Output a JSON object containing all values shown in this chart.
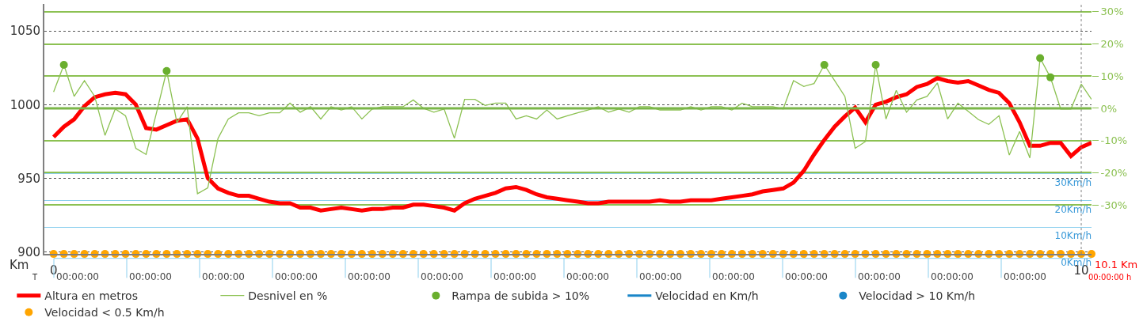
{
  "chart_data": {
    "type": "line",
    "x": [
      0,
      0.1,
      0.2,
      0.3,
      0.4,
      0.5,
      0.6,
      0.7,
      0.8,
      0.9,
      1.0,
      1.1,
      1.2,
      1.3,
      1.4,
      1.5,
      1.6,
      1.7,
      1.8,
      1.9,
      2.0,
      2.1,
      2.2,
      2.3,
      2.4,
      2.5,
      2.6,
      2.7,
      2.8,
      2.9,
      3.0,
      3.1,
      3.2,
      3.3,
      3.4,
      3.5,
      3.6,
      3.7,
      3.8,
      3.9,
      4.0,
      4.1,
      4.2,
      4.3,
      4.4,
      4.5,
      4.6,
      4.7,
      4.8,
      4.9,
      5.0,
      5.1,
      5.2,
      5.3,
      5.4,
      5.5,
      5.6,
      5.7,
      5.8,
      5.9,
      6.0,
      6.1,
      6.2,
      6.3,
      6.4,
      6.5,
      6.6,
      6.7,
      6.8,
      6.9,
      7.0,
      7.1,
      7.2,
      7.3,
      7.4,
      7.5,
      7.6,
      7.7,
      7.8,
      7.9,
      8.0,
      8.1,
      8.2,
      8.3,
      8.4,
      8.5,
      8.6,
      8.7,
      8.8,
      8.9,
      9.0,
      9.1,
      9.2,
      9.3,
      9.4,
      9.5,
      9.6,
      9.7,
      9.8,
      9.9,
      10.0,
      10.1
    ],
    "series": [
      {
        "name": "Altura en metros",
        "type": "line",
        "color": "#ff0000",
        "values": [
          978,
          985,
          990,
          999,
          1005,
          1007,
          1008,
          1007,
          1000,
          984,
          983,
          986,
          989,
          990,
          977,
          950,
          943,
          940,
          938,
          938,
          936,
          934,
          933,
          933,
          930,
          930,
          928,
          929,
          930,
          929,
          928,
          929,
          929,
          930,
          930,
          932,
          932,
          931,
          930,
          928,
          933,
          936,
          938,
          940,
          943,
          944,
          942,
          939,
          937,
          936,
          935,
          934,
          933,
          933,
          934,
          934,
          934,
          934,
          934,
          935,
          934,
          934,
          935,
          935,
          935,
          936,
          937,
          938,
          939,
          941,
          942,
          943,
          947,
          955,
          966,
          976,
          985,
          992,
          998,
          988,
          1000,
          1002,
          1005,
          1007,
          1012,
          1014,
          1018,
          1016,
          1015,
          1016,
          1013,
          1010,
          1008,
          1001,
          988,
          972,
          972,
          974,
          974,
          965,
          971,
          974
        ]
      },
      {
        "name": "Desnivel en %",
        "type": "line",
        "axis": "y2",
        "color": "#8cc152",
        "values": [
          5.1,
          13.5,
          3.7,
          8.6,
          3.7,
          -8.4,
          -0.2,
          -2.3,
          -12.4,
          -14.3,
          -1.5,
          11.6,
          -4.4,
          0.5,
          -26.5,
          -24.7,
          -9.3,
          -3.3,
          -1.4,
          -1.4,
          -2.3,
          -1.4,
          -1.4,
          1.6,
          -1.2,
          0.5,
          -3.3,
          0.5,
          -0.5,
          0.5,
          -3.3,
          -0.2,
          0.5,
          0.5,
          0.5,
          2.6,
          0,
          -1.2,
          -0.2,
          -9.3,
          2.8,
          2.8,
          0.9,
          1.6,
          1.6,
          -3.3,
          -2.3,
          -3.3,
          -0.5,
          -3.3,
          -2.3,
          -1.4,
          -0.5,
          0.5,
          -1.2,
          -0.2,
          -1.2,
          0.5,
          0.5,
          -0.5,
          -0.5,
          -0.5,
          0.5,
          -0.5,
          0.5,
          0.5,
          -0.5,
          1.6,
          0.5,
          0.5,
          0.5,
          -0.2,
          8.6,
          6.8,
          7.7,
          13.5,
          8.6,
          3.7,
          -12.4,
          -10.3,
          13.5,
          -3.3,
          5.6,
          -1.2,
          2.6,
          3.7,
          7.9,
          -3.3,
          1.6,
          -0.9,
          -3.5,
          -5.0,
          -2.3,
          -14.5,
          -7.2,
          -15.4,
          15.6,
          9.6,
          -0.2,
          -0.2,
          7.5,
          2.8
        ]
      },
      {
        "name": "Rampa de subida > 10%",
        "type": "scatter",
        "axis": "y2",
        "marker": "circle",
        "color": "#6aaf2e",
        "x": [
          0.1,
          1.1,
          7.5,
          8.0,
          9.6,
          9.7
        ],
        "values": [
          13.5,
          11.6,
          13.5,
          13.5,
          15.6,
          9.6
        ]
      },
      {
        "name": "Velocidad en Km/h",
        "type": "line",
        "axis": "y3",
        "color": "#1a86c8",
        "values": [
          null,
          null,
          null,
          null,
          null,
          null,
          null,
          null,
          null,
          null,
          null,
          null,
          null,
          null,
          null,
          null,
          null,
          null,
          null,
          null,
          null,
          null,
          null,
          null,
          null,
          null,
          null,
          null,
          null,
          null,
          null,
          null,
          null,
          null,
          null,
          null,
          null,
          null,
          null,
          null,
          null,
          null,
          null,
          null,
          null,
          null,
          null,
          null,
          null,
          null,
          null,
          null,
          null,
          null,
          null,
          null,
          null,
          null,
          null,
          null,
          null,
          null,
          null,
          null,
          null,
          null,
          null,
          null,
          null,
          null,
          null,
          null,
          null,
          null,
          null,
          null,
          null,
          null,
          null,
          null,
          null,
          null,
          null,
          null,
          null,
          null,
          null,
          null,
          null,
          null,
          null,
          null,
          null,
          null,
          null,
          null,
          null,
          null,
          null,
          null,
          null,
          null
        ]
      },
      {
        "name": "Velocidad > 10 Km/h",
        "type": "scatter",
        "axis": "y3",
        "marker": "circle",
        "color": "#1a86c8",
        "values": [
          null,
          null,
          null,
          null,
          null,
          null,
          null,
          null,
          null,
          null,
          null,
          null,
          null,
          null,
          null,
          null,
          null,
          null,
          null,
          null,
          null,
          null,
          null,
          null,
          null,
          null,
          null,
          null,
          null,
          null,
          null,
          null,
          null,
          null,
          null,
          null,
          null,
          null,
          null,
          null,
          null,
          null,
          null,
          null,
          null,
          null,
          null,
          null,
          null,
          null,
          null,
          null,
          null,
          null,
          null,
          null,
          null,
          null,
          null,
          null,
          null,
          null,
          null,
          null,
          null,
          null,
          null,
          null,
          null,
          null,
          null,
          null,
          null,
          null,
          null,
          null,
          null,
          null,
          null,
          null,
          null,
          null,
          null,
          null,
          null,
          null,
          null,
          null,
          null,
          null,
          null,
          null,
          null,
          null,
          null,
          null,
          null,
          null,
          null,
          null,
          null,
          null
        ]
      },
      {
        "name": "Velocidad < 0.5 Km/h",
        "type": "scatter",
        "axis": "y3",
        "marker": "circle",
        "color": "#ffa500",
        "values": [
          0,
          0,
          0,
          0,
          0,
          0,
          0,
          0,
          0,
          0,
          0,
          0,
          0,
          0,
          0,
          0,
          0,
          0,
          0,
          0,
          0,
          0,
          0,
          0,
          0,
          0,
          0,
          0,
          0,
          0,
          0,
          0,
          0,
          0,
          0,
          0,
          0,
          0,
          0,
          0,
          0,
          0,
          0,
          0,
          0,
          0,
          0,
          0,
          0,
          0,
          0,
          0,
          0,
          0,
          0,
          0,
          0,
          0,
          0,
          0,
          0,
          0,
          0,
          0,
          0,
          0,
          0,
          0,
          0,
          0,
          0,
          0,
          0,
          0,
          0,
          0,
          0,
          0,
          0,
          0,
          0,
          0,
          0,
          0,
          0,
          0,
          0,
          0,
          0,
          0,
          0,
          0,
          0,
          0,
          0,
          0,
          0,
          0,
          0,
          0,
          0,
          0
        ]
      }
    ],
    "xlabel": "Km",
    "xlim": [
      -0.09,
      10.1
    ],
    "xticks": [
      0,
      10
    ],
    "ylim": [
      898.5,
      1068.4
    ],
    "yticks": [
      900,
      950,
      1000,
      1050
    ],
    "y2lim": [
      -45.2,
      32.4
    ],
    "y2ticks": [
      {
        "value": 30,
        "label": "30%"
      },
      {
        "value": 20,
        "label": "20%"
      },
      {
        "value": 10,
        "label": "10%"
      },
      {
        "value": 0,
        "label": "0%"
      },
      {
        "value": -10,
        "label": "-10%"
      },
      {
        "value": -20,
        "label": "-20%"
      },
      {
        "value": -30,
        "label": "-30%"
      }
    ],
    "y3lim": [
      0,
      93.4
    ],
    "y3ticks": [
      {
        "value": 0,
        "label": "0Km/h"
      },
      {
        "value": 10,
        "label": "10Km/h"
      },
      {
        "value": 20,
        "label": "20Km/h"
      },
      {
        "value": 30,
        "label": "30Km/h"
      }
    ],
    "ref_lines": [
      {
        "axis": "x",
        "value": 10,
        "color": "#808080",
        "line_style": "dotted"
      },
      {
        "axis": "y2",
        "value": 0,
        "color": "#7ab648"
      }
    ],
    "annotations": [
      {
        "text": "10.1 Km",
        "x": 10.1,
        "y": 898.5
      },
      {
        "text": "00:00:00 h",
        "x": 10.1,
        "y": 898.5
      },
      "T",
      "00:00:00",
      "00:00:00",
      "00:00:00",
      "00:00:00",
      "00:00:00",
      "00:00:00",
      "00:00:00",
      "00:00:00",
      "00:00:00",
      "00:00:00",
      "00:00:00",
      "00:00:00",
      "00:00:00",
      "00:00:00"
    ],
    "grid": true,
    "legend": "bottom"
  }
}
